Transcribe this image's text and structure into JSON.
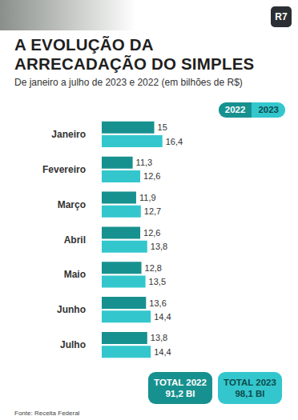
{
  "chart_data": {
    "type": "bar",
    "orientation": "horizontal",
    "title": "A EVOLUÇÃO DA ARRECADAÇÃO DO SIMPLES",
    "subtitle": "De janeiro a julho de 2023 e 2022 (em bilhões de R$)",
    "categories": [
      "Janeiro",
      "Fevereiro",
      "Março",
      "Abril",
      "Maio",
      "Junho",
      "Julho"
    ],
    "series": [
      {
        "name": "2022",
        "color": "#17918f",
        "values": [
          15,
          11.3,
          11.9,
          12.6,
          12.8,
          13.6,
          13.8
        ],
        "value_labels": [
          "15",
          "11,3",
          "11,9",
          "12,6",
          "12,8",
          "13,6",
          "13,8"
        ]
      },
      {
        "name": "2023",
        "color": "#33c7cd",
        "values": [
          16.4,
          12.6,
          12.7,
          13.8,
          13.5,
          14.4,
          14.4
        ],
        "value_labels": [
          "16,4",
          "12,6",
          "12,7",
          "13,8",
          "13,5",
          "14,4",
          "14,4"
        ]
      }
    ],
    "xlim": [
      6,
      38
    ],
    "xticks": [
      6,
      38
    ],
    "tick_labels": false,
    "grid": false,
    "data_labels": true,
    "legend": "top-right",
    "annotations": [
      {
        "label": "TOTAL 2022",
        "total": "91,2 BI",
        "series": "2022"
      },
      {
        "label": "TOTAL 2023",
        "total": "98,1 BI",
        "series": "2023"
      }
    ],
    "source": "Fonte: Receita Federal",
    "brand": "R7"
  }
}
